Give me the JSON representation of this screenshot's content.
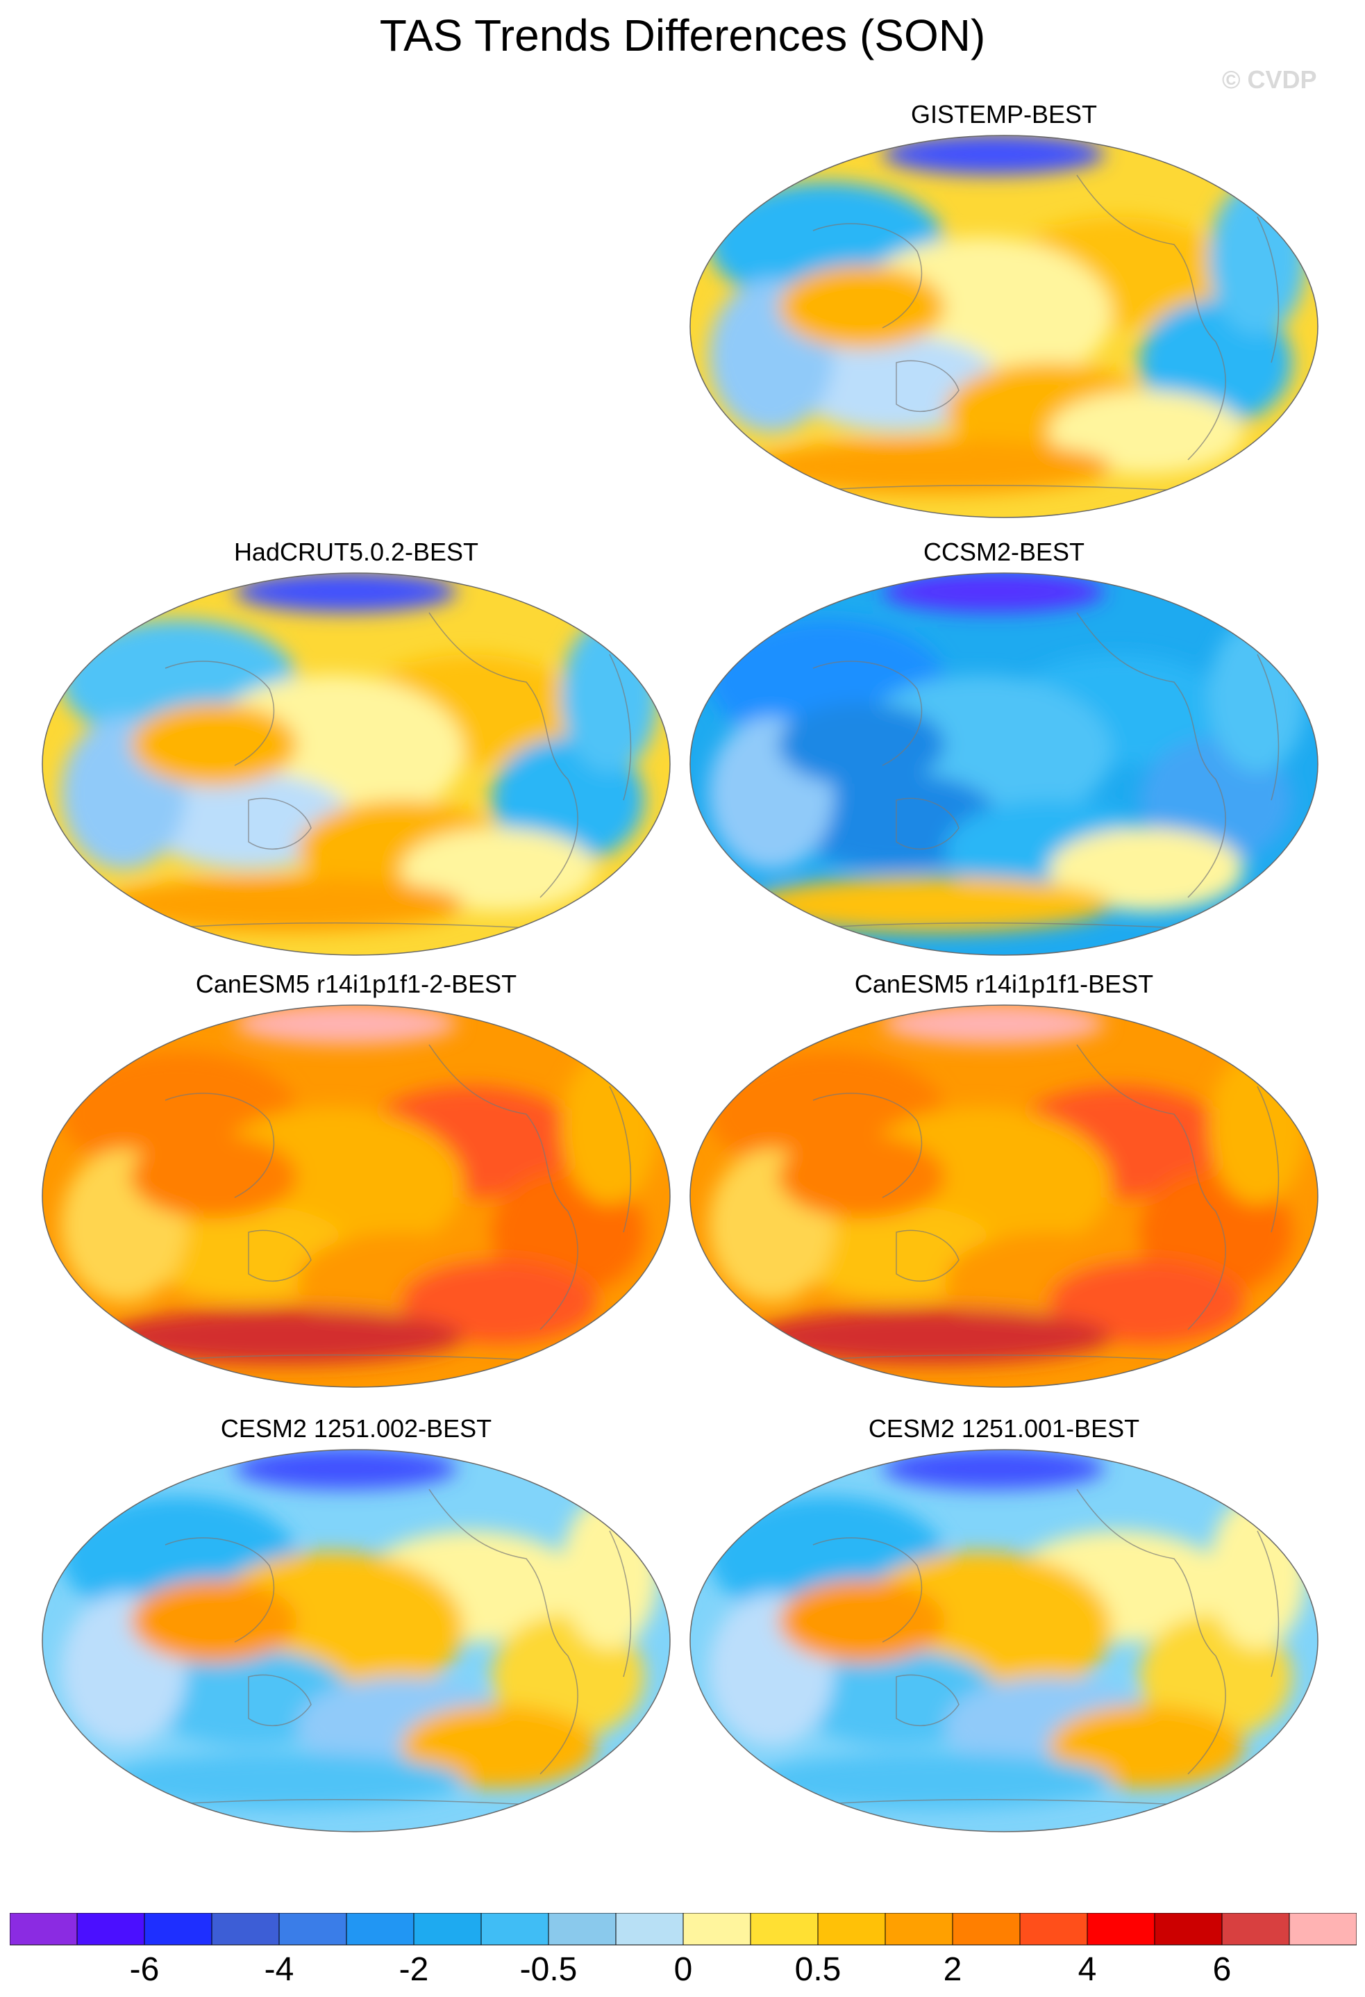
{
  "title": "TAS Trends Differences (SON)",
  "watermark": "© CVDP",
  "panels": [
    {
      "label": "GISTEMP-BEST",
      "base": "#fdd835",
      "blobs": [
        "#29b6f6",
        "#ffc107",
        "#fff59d",
        "#bbdefb",
        "#29b6f6",
        "#ffb300",
        "#90caf9",
        "#fff59d",
        "#ffa000",
        "#3f51ff",
        "#4fc3f7",
        "#ffb300"
      ]
    },
    {
      "label": "HadCRUT5.0.2-BEST",
      "base": "#fdd835",
      "blobs": [
        "#4fc3f7",
        "#ffc107",
        "#fff59d",
        "#bbdefb",
        "#29b6f6",
        "#ffb300",
        "#90caf9",
        "#fff59d",
        "#ffa000",
        "#3f51ff",
        "#4fc3f7",
        "#ffb300"
      ]
    },
    {
      "label": "CCSM2-BEST",
      "base": "#1eaaf0",
      "blobs": [
        "#1e90ff",
        "#29b6f6",
        "#4fc3f7",
        "#1e88e5",
        "#42a5f5",
        "#29b6f6",
        "#90caf9",
        "#fff59d",
        "#ffc107",
        "#5533ff",
        "#4fc3f7",
        "#1e88e5"
      ]
    },
    {
      "label": "CanESM5 r14i1p1f1-2-BEST",
      "base": "#ff9800",
      "blobs": [
        "#ff7f00",
        "#ff5722",
        "#ffb300",
        "#ffc107",
        "#ff6d00",
        "#ff9800",
        "#ffd54f",
        "#ff5722",
        "#d32f2f",
        "#ffb3b3",
        "#ffb300",
        "#ff7f00"
      ]
    },
    {
      "label": "CanESM5 r14i1p1f1-BEST",
      "base": "#ff9800",
      "blobs": [
        "#ff7f00",
        "#ff5722",
        "#ffb300",
        "#ffc107",
        "#ff6d00",
        "#ff9800",
        "#ffd54f",
        "#ff5722",
        "#d32f2f",
        "#ffb3b3",
        "#ffb300",
        "#ff7f00"
      ]
    },
    {
      "label": "CESM2 1251.002-BEST",
      "base": "#81d4fa",
      "blobs": [
        "#29b6f6",
        "#fff59d",
        "#ffc107",
        "#4fc3f7",
        "#fdd835",
        "#90caf9",
        "#bbdefb",
        "#ffb300",
        "#4fc3f7",
        "#3f51ff",
        "#fff59d",
        "#ff9800"
      ]
    },
    {
      "label": "CESM2 1251.001-BEST",
      "base": "#81d4fa",
      "blobs": [
        "#29b6f6",
        "#fff59d",
        "#ffc107",
        "#4fc3f7",
        "#fdd835",
        "#90caf9",
        "#bbdefb",
        "#ffb300",
        "#4fc3f7",
        "#3f51ff",
        "#fff59d",
        "#ff9800"
      ]
    }
  ],
  "colorbar": {
    "colors": [
      "#8b2be2",
      "#4b0fff",
      "#1e2fff",
      "#3d5ed6",
      "#3a7de8",
      "#2196f3",
      "#1eaaf0",
      "#40bdf5",
      "#8ac9ec",
      "#b8e0f5",
      "#fff59d",
      "#ffe033",
      "#ffc107",
      "#ffa000",
      "#ff7f00",
      "#ff4f1a",
      "#ff0000",
      "#cc0000",
      "#d84040",
      "#ffb3b3"
    ],
    "labels": [
      "-6",
      "-4",
      "-2",
      "-0.5",
      "0",
      "0.5",
      "2",
      "4",
      "6"
    ]
  }
}
